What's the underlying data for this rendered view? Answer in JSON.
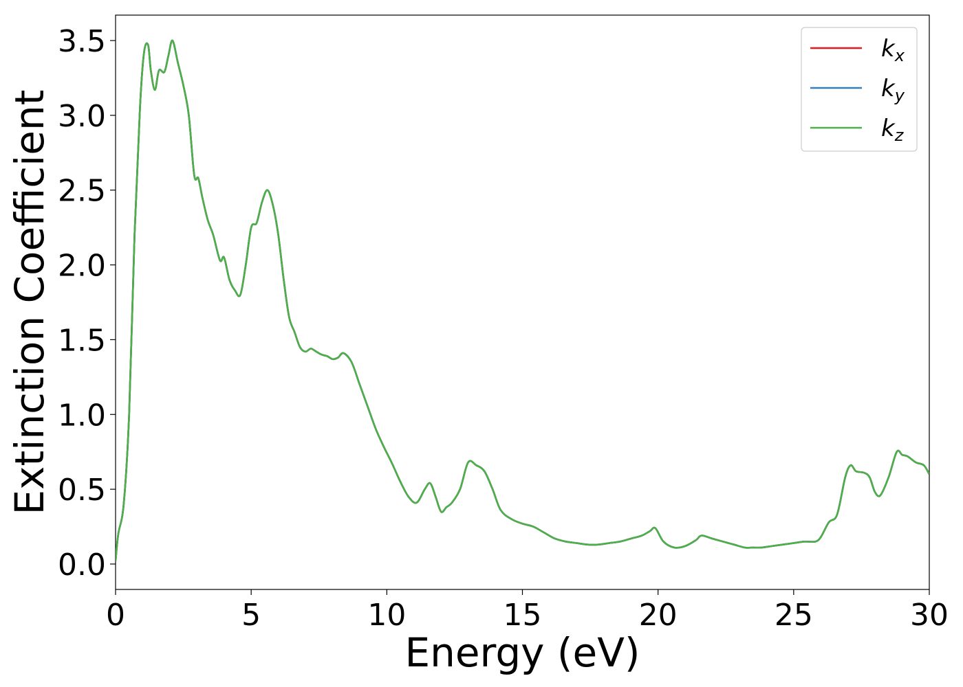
{
  "chart_data": {
    "type": "line",
    "xlabel": "Energy (eV)",
    "ylabel": "Extinction Coefficient",
    "xlim": [
      0,
      30
    ],
    "ylim": [
      -0.17,
      3.67
    ],
    "xticks": [
      "0",
      "5",
      "10",
      "15",
      "20",
      "25",
      "30"
    ],
    "yticks": [
      "0.0",
      "0.5",
      "1.0",
      "1.5",
      "2.0",
      "2.5",
      "3.0",
      "3.5"
    ],
    "grid": false,
    "legend_position": "top-right",
    "series": [
      {
        "name": "k",
        "subscript": "x",
        "color": "#e41a1c"
      },
      {
        "name": "k",
        "subscript": "y",
        "color": "#377eb8"
      },
      {
        "name": "k",
        "subscript": "z",
        "color": "#4daf4a"
      }
    ],
    "x": [
      0,
      0.1,
      0.3,
      0.5,
      0.7,
      0.9,
      1.05,
      1.2,
      1.3,
      1.45,
      1.6,
      1.8,
      1.95,
      2.1,
      2.3,
      2.5,
      2.7,
      2.9,
      3.05,
      3.2,
      3.4,
      3.6,
      3.85,
      4.0,
      4.2,
      4.4,
      4.6,
      4.8,
      5.0,
      5.2,
      5.4,
      5.6,
      5.8,
      6.0,
      6.2,
      6.4,
      6.6,
      6.8,
      7.0,
      7.2,
      7.4,
      7.6,
      7.8,
      8.0,
      8.2,
      8.4,
      8.7,
      9.0,
      9.3,
      9.6,
      9.9,
      10.2,
      10.5,
      10.8,
      11.1,
      11.4,
      11.6,
      11.8,
      12.0,
      12.2,
      12.4,
      12.7,
      13.0,
      13.3,
      13.6,
      13.9,
      14.2,
      14.6,
      15.0,
      15.4,
      15.8,
      16.2,
      16.6,
      17.0,
      17.4,
      17.8,
      18.2,
      18.6,
      19.0,
      19.4,
      19.7,
      19.9,
      20.2,
      20.6,
      21.0,
      21.4,
      21.6,
      22.0,
      22.4,
      22.8,
      23.2,
      23.5,
      23.8,
      24.2,
      24.6,
      25.0,
      25.4,
      25.8,
      26.0,
      26.3,
      26.6,
      26.9,
      27.1,
      27.3,
      27.6,
      27.8,
      28.0,
      28.2,
      28.5,
      28.8,
      29.0,
      29.2,
      29.5,
      29.8,
      30.0
    ],
    "y": [
      0.02,
      0.2,
      0.4,
      1.0,
      2.2,
      3.05,
      3.42,
      3.47,
      3.3,
      3.17,
      3.3,
      3.29,
      3.4,
      3.5,
      3.35,
      3.2,
      3.0,
      2.6,
      2.58,
      2.45,
      2.3,
      2.2,
      2.03,
      2.05,
      1.9,
      1.83,
      1.8,
      2.0,
      2.25,
      2.28,
      2.42,
      2.5,
      2.4,
      2.2,
      1.9,
      1.65,
      1.55,
      1.45,
      1.42,
      1.44,
      1.42,
      1.4,
      1.39,
      1.37,
      1.38,
      1.41,
      1.35,
      1.2,
      1.05,
      0.9,
      0.78,
      0.67,
      0.55,
      0.45,
      0.41,
      0.5,
      0.54,
      0.45,
      0.35,
      0.38,
      0.41,
      0.5,
      0.68,
      0.66,
      0.62,
      0.5,
      0.36,
      0.3,
      0.27,
      0.25,
      0.21,
      0.17,
      0.15,
      0.14,
      0.13,
      0.13,
      0.14,
      0.15,
      0.17,
      0.19,
      0.22,
      0.24,
      0.15,
      0.11,
      0.12,
      0.16,
      0.19,
      0.17,
      0.15,
      0.13,
      0.11,
      0.11,
      0.11,
      0.12,
      0.13,
      0.14,
      0.15,
      0.15,
      0.18,
      0.28,
      0.33,
      0.58,
      0.66,
      0.62,
      0.61,
      0.58,
      0.48,
      0.46,
      0.58,
      0.75,
      0.73,
      0.72,
      0.68,
      0.66,
      0.6
    ]
  }
}
